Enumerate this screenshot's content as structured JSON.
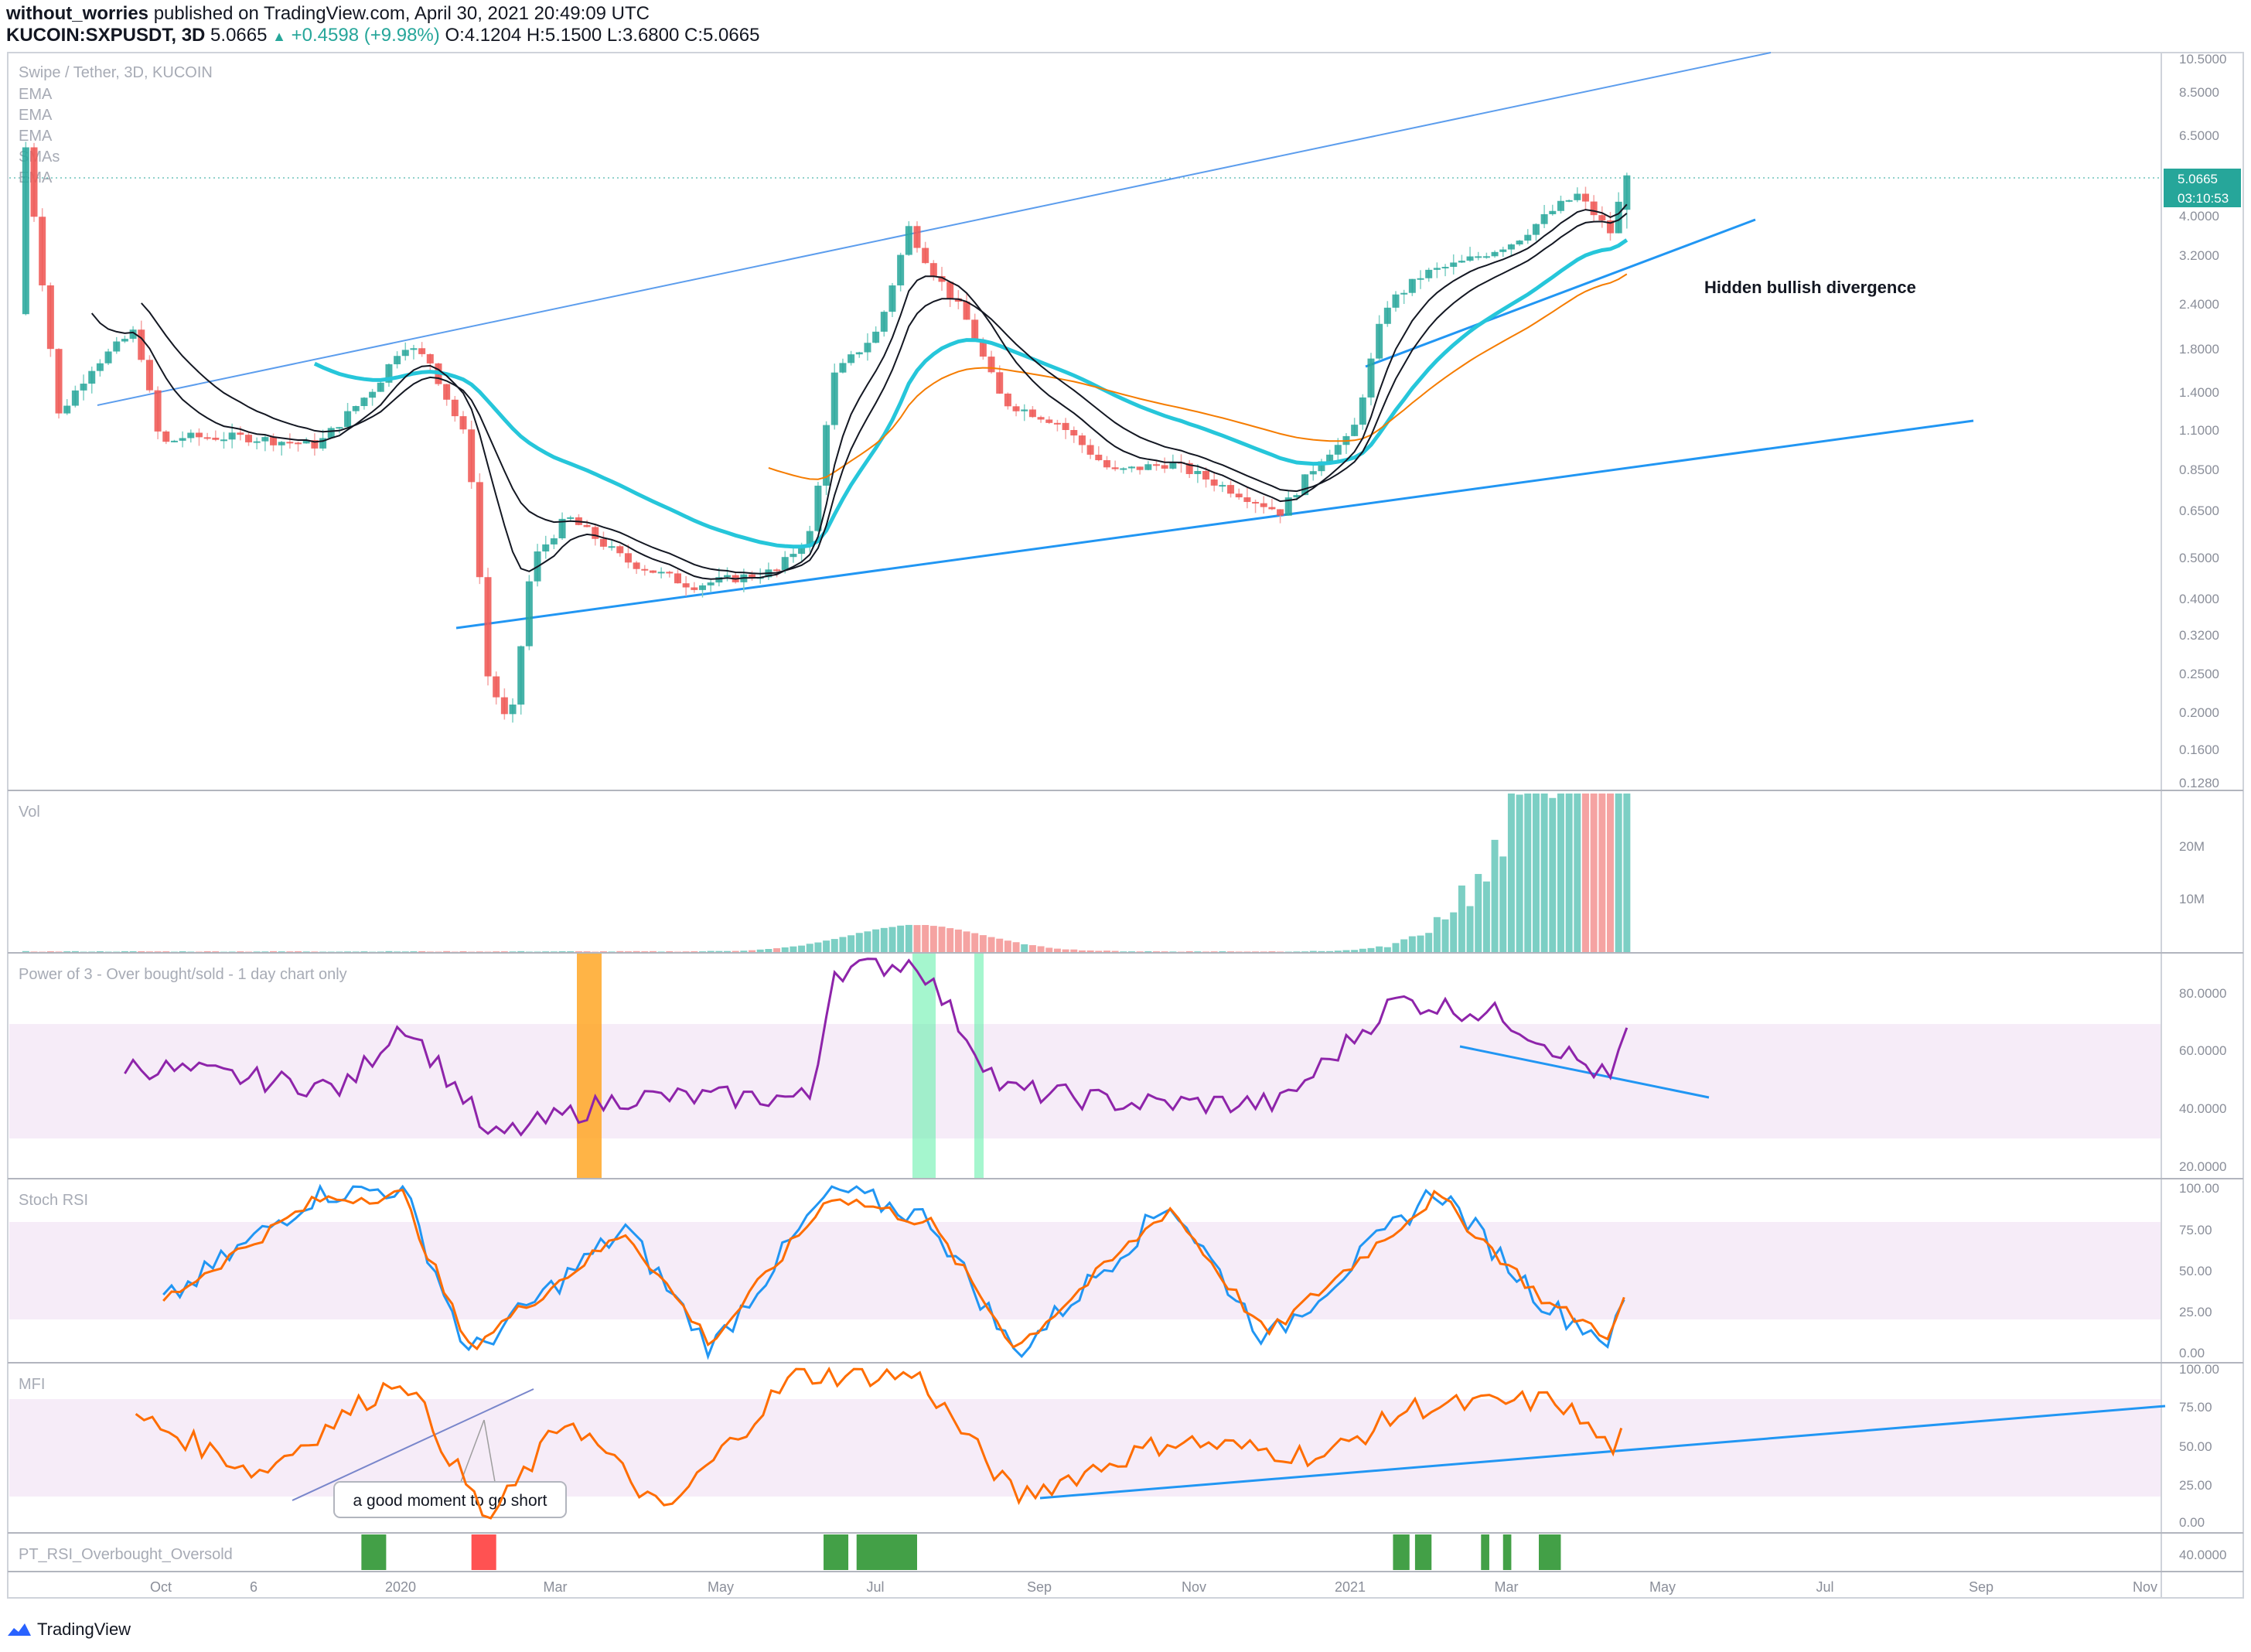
{
  "header": {
    "author": "without_worries",
    "published_text": "published on TradingView.com, April 30, 2021 20:49:09 UTC",
    "symbol": "KUCOIN:SXPUSDT, 3D",
    "last": "5.0665",
    "change": "+0.4598 (+9.98%)",
    "ohlc": "O:4.1204 H:5.1500 L:3.6800 C:5.0665"
  },
  "price_pane": {
    "title": "Swipe / Tether, 3D, KUCOIN",
    "indicators": [
      "EMA",
      "EMA",
      "EMA",
      "SMAs",
      "EMA"
    ],
    "axis_ticks": [
      "10.5000",
      "8.5000",
      "6.5000",
      "4.0000",
      "3.2000",
      "2.4000",
      "1.8000",
      "1.4000",
      "1.1000",
      "0.8500",
      "0.6500",
      "0.5000",
      "0.4000",
      "0.3200",
      "0.2500",
      "0.2000",
      "0.1600",
      "0.1280"
    ],
    "price_label": "5.0665",
    "countdown_label": "03:10:53",
    "annotation": "Hidden bullish divergence"
  },
  "vol_pane": {
    "title": "Vol",
    "axis_ticks": [
      "20M",
      "10M"
    ]
  },
  "po3_pane": {
    "title": "Power of 3 - Over bought/sold - 1 day chart only",
    "axis_ticks": [
      "80.0000",
      "60.0000",
      "40.0000",
      "20.0000"
    ]
  },
  "stoch_pane": {
    "title": "Stoch RSI",
    "axis_ticks": [
      "100.00",
      "75.00",
      "50.00",
      "25.00",
      "0.00"
    ]
  },
  "mfi_pane": {
    "title": "MFI",
    "axis_ticks": [
      "100.00",
      "75.00",
      "50.00",
      "25.00",
      "0.00"
    ],
    "annotation": "a good moment to go short"
  },
  "pt_pane": {
    "title": "PT_RSI_Overbought_Oversold",
    "axis_ticks": [
      "40.0000"
    ]
  },
  "x_axis": {
    "labels": [
      "Oct",
      "6",
      "2020",
      "Mar",
      "May",
      "Jul",
      "Sep",
      "Nov",
      "2021",
      "Mar",
      "May",
      "Jul",
      "Sep",
      "Nov"
    ]
  },
  "footer": {
    "brand": "TradingView"
  },
  "colors": {
    "bull": "#26a69a",
    "bull_light": "#7ccfc4",
    "bear": "#ef5350",
    "bear_light": "#f5a3a2",
    "ema_cyan": "#26c6da",
    "ema_orange": "#f57c00",
    "trend_blue": "#2196f3",
    "osc_purple": "#8e24aa",
    "stoch_blue": "#2196f3",
    "stoch_orange": "#ff6d00",
    "band_fill": "#f3e5f5",
    "green_bar": "#43a047",
    "red_bar": "#ff5252",
    "orange_zone": "#ffa726",
    "green_zone": "#69f0ae"
  },
  "chart_data": [
    {
      "type": "candlestick",
      "title": "Swipe / Tether, 3D, KUCOIN",
      "scale": "log",
      "ylim": [
        0.128,
        10.5
      ],
      "x_range": [
        "2019-09-20",
        "2021-11-10"
      ],
      "price_path": [
        [
          "2019-09-20",
          2.2
        ],
        [
          "2019-09-26",
          6.0
        ],
        [
          "2019-10-08",
          1.2
        ],
        [
          "2019-10-20",
          1.6
        ],
        [
          "2019-11-05",
          2.0
        ],
        [
          "2019-11-14",
          1.0
        ],
        [
          "2019-11-22",
          1.05
        ],
        [
          "2019-12-15",
          1.05
        ],
        [
          "2020-01-10",
          1.0
        ],
        [
          "2020-02-01",
          1.45
        ],
        [
          "2020-02-10",
          1.85
        ],
        [
          "2020-02-20",
          1.65
        ],
        [
          "2020-03-05",
          1.0
        ],
        [
          "2020-03-12",
          0.25
        ],
        [
          "2020-03-20",
          0.18
        ],
        [
          "2020-03-28",
          0.5
        ],
        [
          "2020-04-10",
          0.65
        ],
        [
          "2020-05-01",
          0.5
        ],
        [
          "2020-05-25",
          0.43
        ],
        [
          "2020-06-25",
          0.47
        ],
        [
          "2020-07-08",
          0.6
        ],
        [
          "2020-07-15",
          1.5
        ],
        [
          "2020-08-01",
          2.0
        ],
        [
          "2020-08-12",
          3.7
        ],
        [
          "2020-08-20",
          2.9
        ],
        [
          "2020-09-01",
          2.2
        ],
        [
          "2020-09-15",
          1.3
        ],
        [
          "2020-10-05",
          1.15
        ],
        [
          "2020-10-25",
          0.85
        ],
        [
          "2020-11-15",
          0.9
        ],
        [
          "2020-12-10",
          0.75
        ],
        [
          "2020-12-25",
          0.67
        ],
        [
          "2021-01-10",
          0.95
        ],
        [
          "2021-01-20",
          1.05
        ],
        [
          "2021-02-01",
          2.3
        ],
        [
          "2021-02-15",
          2.8
        ],
        [
          "2021-03-01",
          3.0
        ],
        [
          "2021-03-20",
          3.4
        ],
        [
          "2021-04-05",
          4.2
        ],
        [
          "2021-04-12",
          4.5
        ],
        [
          "2021-04-24",
          3.6
        ],
        [
          "2021-04-30",
          5.0665
        ]
      ],
      "last": {
        "date": "2021-04-30",
        "open": 4.1204,
        "high": 5.15,
        "low": 3.68,
        "close": 5.0665
      }
    },
    {
      "type": "bar",
      "title": "Vol",
      "ylim": [
        0,
        30000000
      ],
      "peaks": [
        [
          "2020-08-15",
          5000000
        ],
        [
          "2021-04-05",
          29000000
        ],
        [
          "2021-04-30",
          28000000
        ]
      ]
    },
    {
      "type": "line",
      "title": "Power of 3 - Over bought/sold - 1 day chart only",
      "ylim": [
        15,
        90
      ],
      "band": [
        30,
        70
      ],
      "x": [
        "2019-11-01",
        "2020-01-20",
        "2020-02-10",
        "2020-03-05",
        "2020-03-12",
        "2020-05-01",
        "2020-07-08",
        "2020-07-15",
        "2020-08-15",
        "2020-09-15",
        "2020-11-01",
        "2020-12-25",
        "2021-02-05",
        "2021-03-15",
        "2021-04-24",
        "2021-04-30"
      ],
      "y": [
        53,
        45,
        68,
        40,
        28,
        42,
        42,
        85,
        88,
        45,
        40,
        40,
        75,
        70,
        48,
        64
      ]
    },
    {
      "type": "line",
      "title": "Stoch RSI",
      "ylim": [
        0,
        100
      ],
      "band": [
        20,
        80
      ],
      "series": [
        {
          "x": [
            "2019-11-15",
            "2020-01-10",
            "2020-02-10",
            "2020-03-05",
            "2020-05-01",
            "2020-06-01",
            "2020-07-15",
            "2020-08-20",
            "2020-09-20",
            "2020-11-15",
            "2020-12-20",
            "2021-02-20",
            "2021-04-01",
            "2021-04-24",
            "2021-04-30"
          ],
          "y": [
            32,
            95,
            98,
            2,
            75,
            5,
            98,
            80,
            2,
            90,
            10,
            98,
            30,
            10,
            35
          ]
        }
      ]
    },
    {
      "type": "line",
      "title": "MFI",
      "ylim": [
        0,
        100
      ],
      "band": [
        20,
        80
      ],
      "x": [
        "2019-11-05",
        "2019-12-20",
        "2020-02-10",
        "2020-03-12",
        "2020-04-10",
        "2020-05-15",
        "2020-07-01",
        "2020-08-15",
        "2020-09-20",
        "2020-11-15",
        "2021-01-10",
        "2021-02-10",
        "2021-04-05",
        "2021-04-24",
        "2021-04-30"
      ],
      "y": [
        70,
        35,
        95,
        5,
        70,
        10,
        95,
        95,
        20,
        55,
        45,
        75,
        80,
        50,
        60
      ]
    }
  ]
}
